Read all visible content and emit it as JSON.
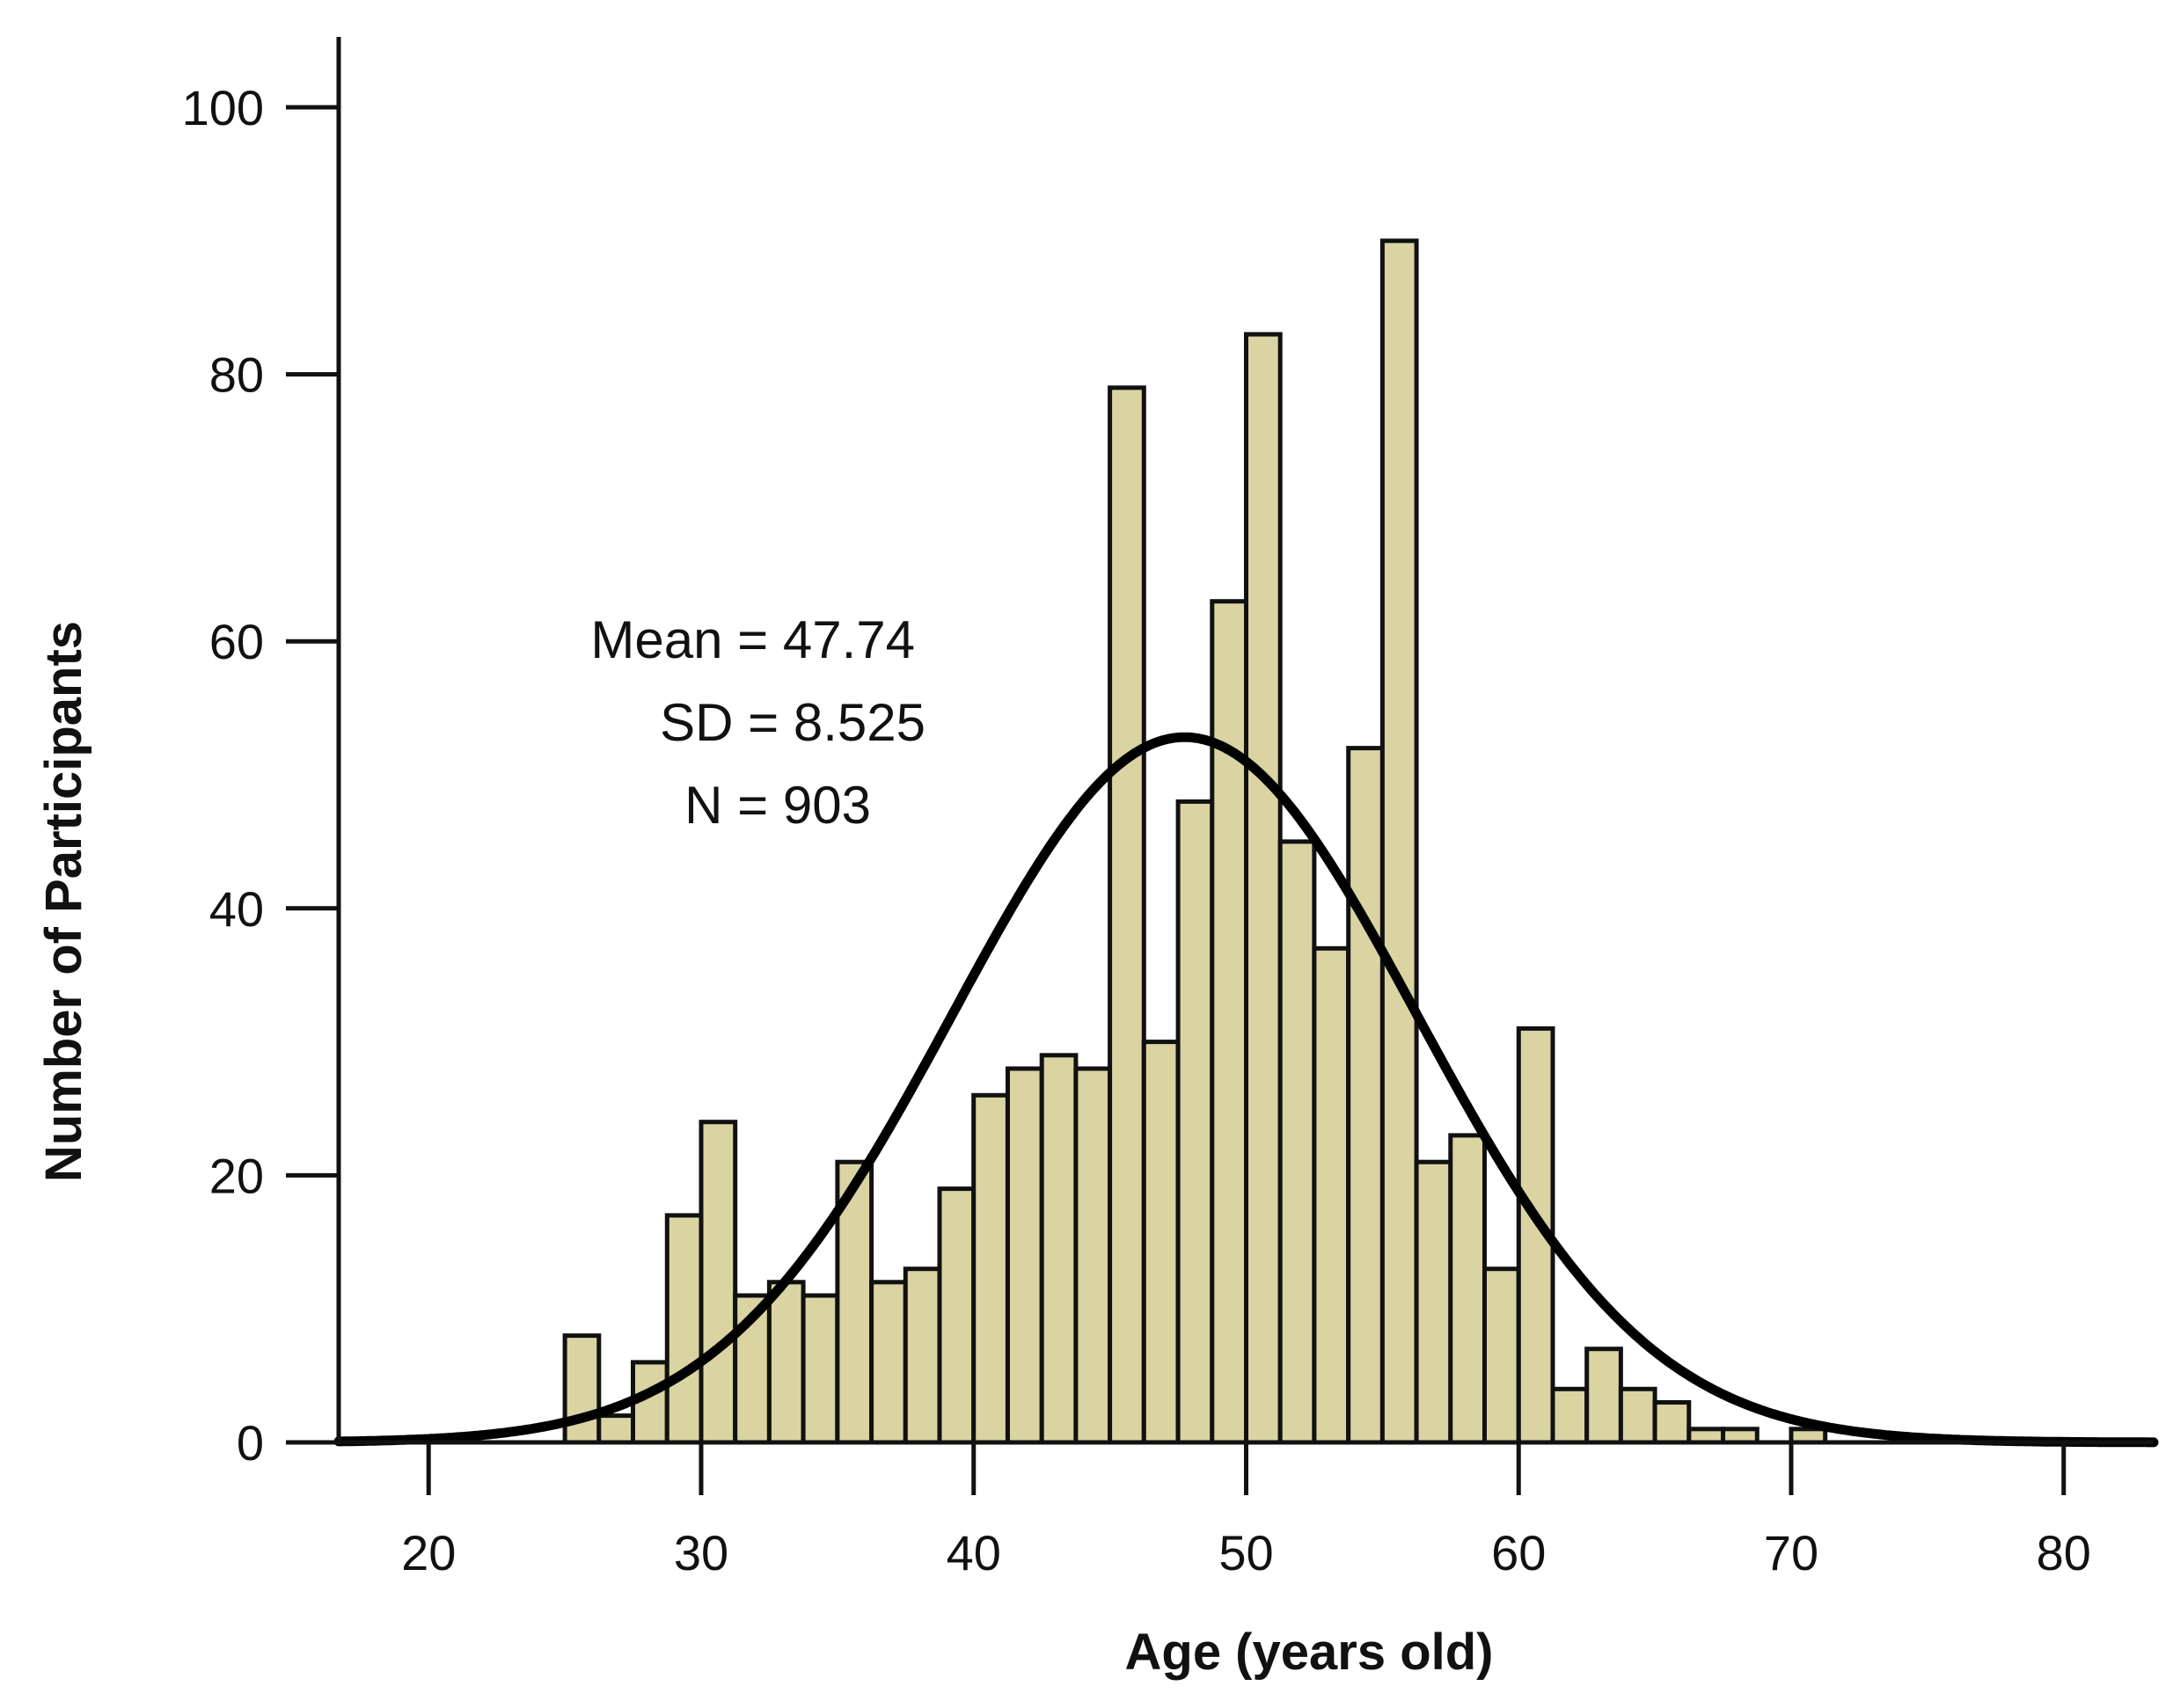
{
  "chart_data": {
    "type": "bar",
    "subtype": "histogram",
    "bin_width": 1.25,
    "bin_start": 25,
    "bins": [
      {
        "start": 25.0,
        "value": 8
      },
      {
        "start": 26.25,
        "value": 2
      },
      {
        "start": 27.5,
        "value": 6
      },
      {
        "start": 28.75,
        "value": 17
      },
      {
        "start": 30.0,
        "value": 24
      },
      {
        "start": 31.25,
        "value": 11
      },
      {
        "start": 32.5,
        "value": 12
      },
      {
        "start": 33.75,
        "value": 11
      },
      {
        "start": 35.0,
        "value": 21
      },
      {
        "start": 36.25,
        "value": 12
      },
      {
        "start": 37.5,
        "value": 13
      },
      {
        "start": 38.75,
        "value": 19
      },
      {
        "start": 40.0,
        "value": 26
      },
      {
        "start": 41.25,
        "value": 28
      },
      {
        "start": 42.5,
        "value": 29
      },
      {
        "start": 43.75,
        "value": 28
      },
      {
        "start": 45.0,
        "value": 79
      },
      {
        "start": 46.25,
        "value": 30
      },
      {
        "start": 47.5,
        "value": 48
      },
      {
        "start": 48.75,
        "value": 63
      },
      {
        "start": 50.0,
        "value": 83
      },
      {
        "start": 51.25,
        "value": 45
      },
      {
        "start": 52.5,
        "value": 37
      },
      {
        "start": 53.75,
        "value": 52
      },
      {
        "start": 55.0,
        "value": 90
      },
      {
        "start": 56.25,
        "value": 21
      },
      {
        "start": 57.5,
        "value": 23
      },
      {
        "start": 58.75,
        "value": 13
      },
      {
        "start": 60.0,
        "value": 31
      },
      {
        "start": 61.25,
        "value": 4
      },
      {
        "start": 62.5,
        "value": 7
      },
      {
        "start": 63.75,
        "value": 4
      },
      {
        "start": 65.0,
        "value": 3
      },
      {
        "start": 66.25,
        "value": 1
      },
      {
        "start": 67.5,
        "value": 1
      },
      {
        "start": 68.75,
        "value": 0
      },
      {
        "start": 70.0,
        "value": 1
      }
    ],
    "normal_curve": {
      "mean": 47.74,
      "sd": 8.525,
      "n": 903
    },
    "xlabel": "Age (years old)",
    "ylabel": "Number of Participants",
    "xlim": [
      16.7,
      83.3
    ],
    "ylim": [
      0,
      106
    ],
    "xticks": [
      20,
      30,
      40,
      50,
      60,
      70,
      80
    ],
    "yticks": [
      0,
      20,
      40,
      60,
      80,
      100
    ],
    "annotations": [
      "Mean = 47.74",
      "SD = 8.525",
      "N = 903"
    ],
    "grid": false
  },
  "colors": {
    "bar_fill": "#d9d4a2",
    "bar_stroke": "#111111",
    "curve": "#000000",
    "axis": "#111111"
  }
}
